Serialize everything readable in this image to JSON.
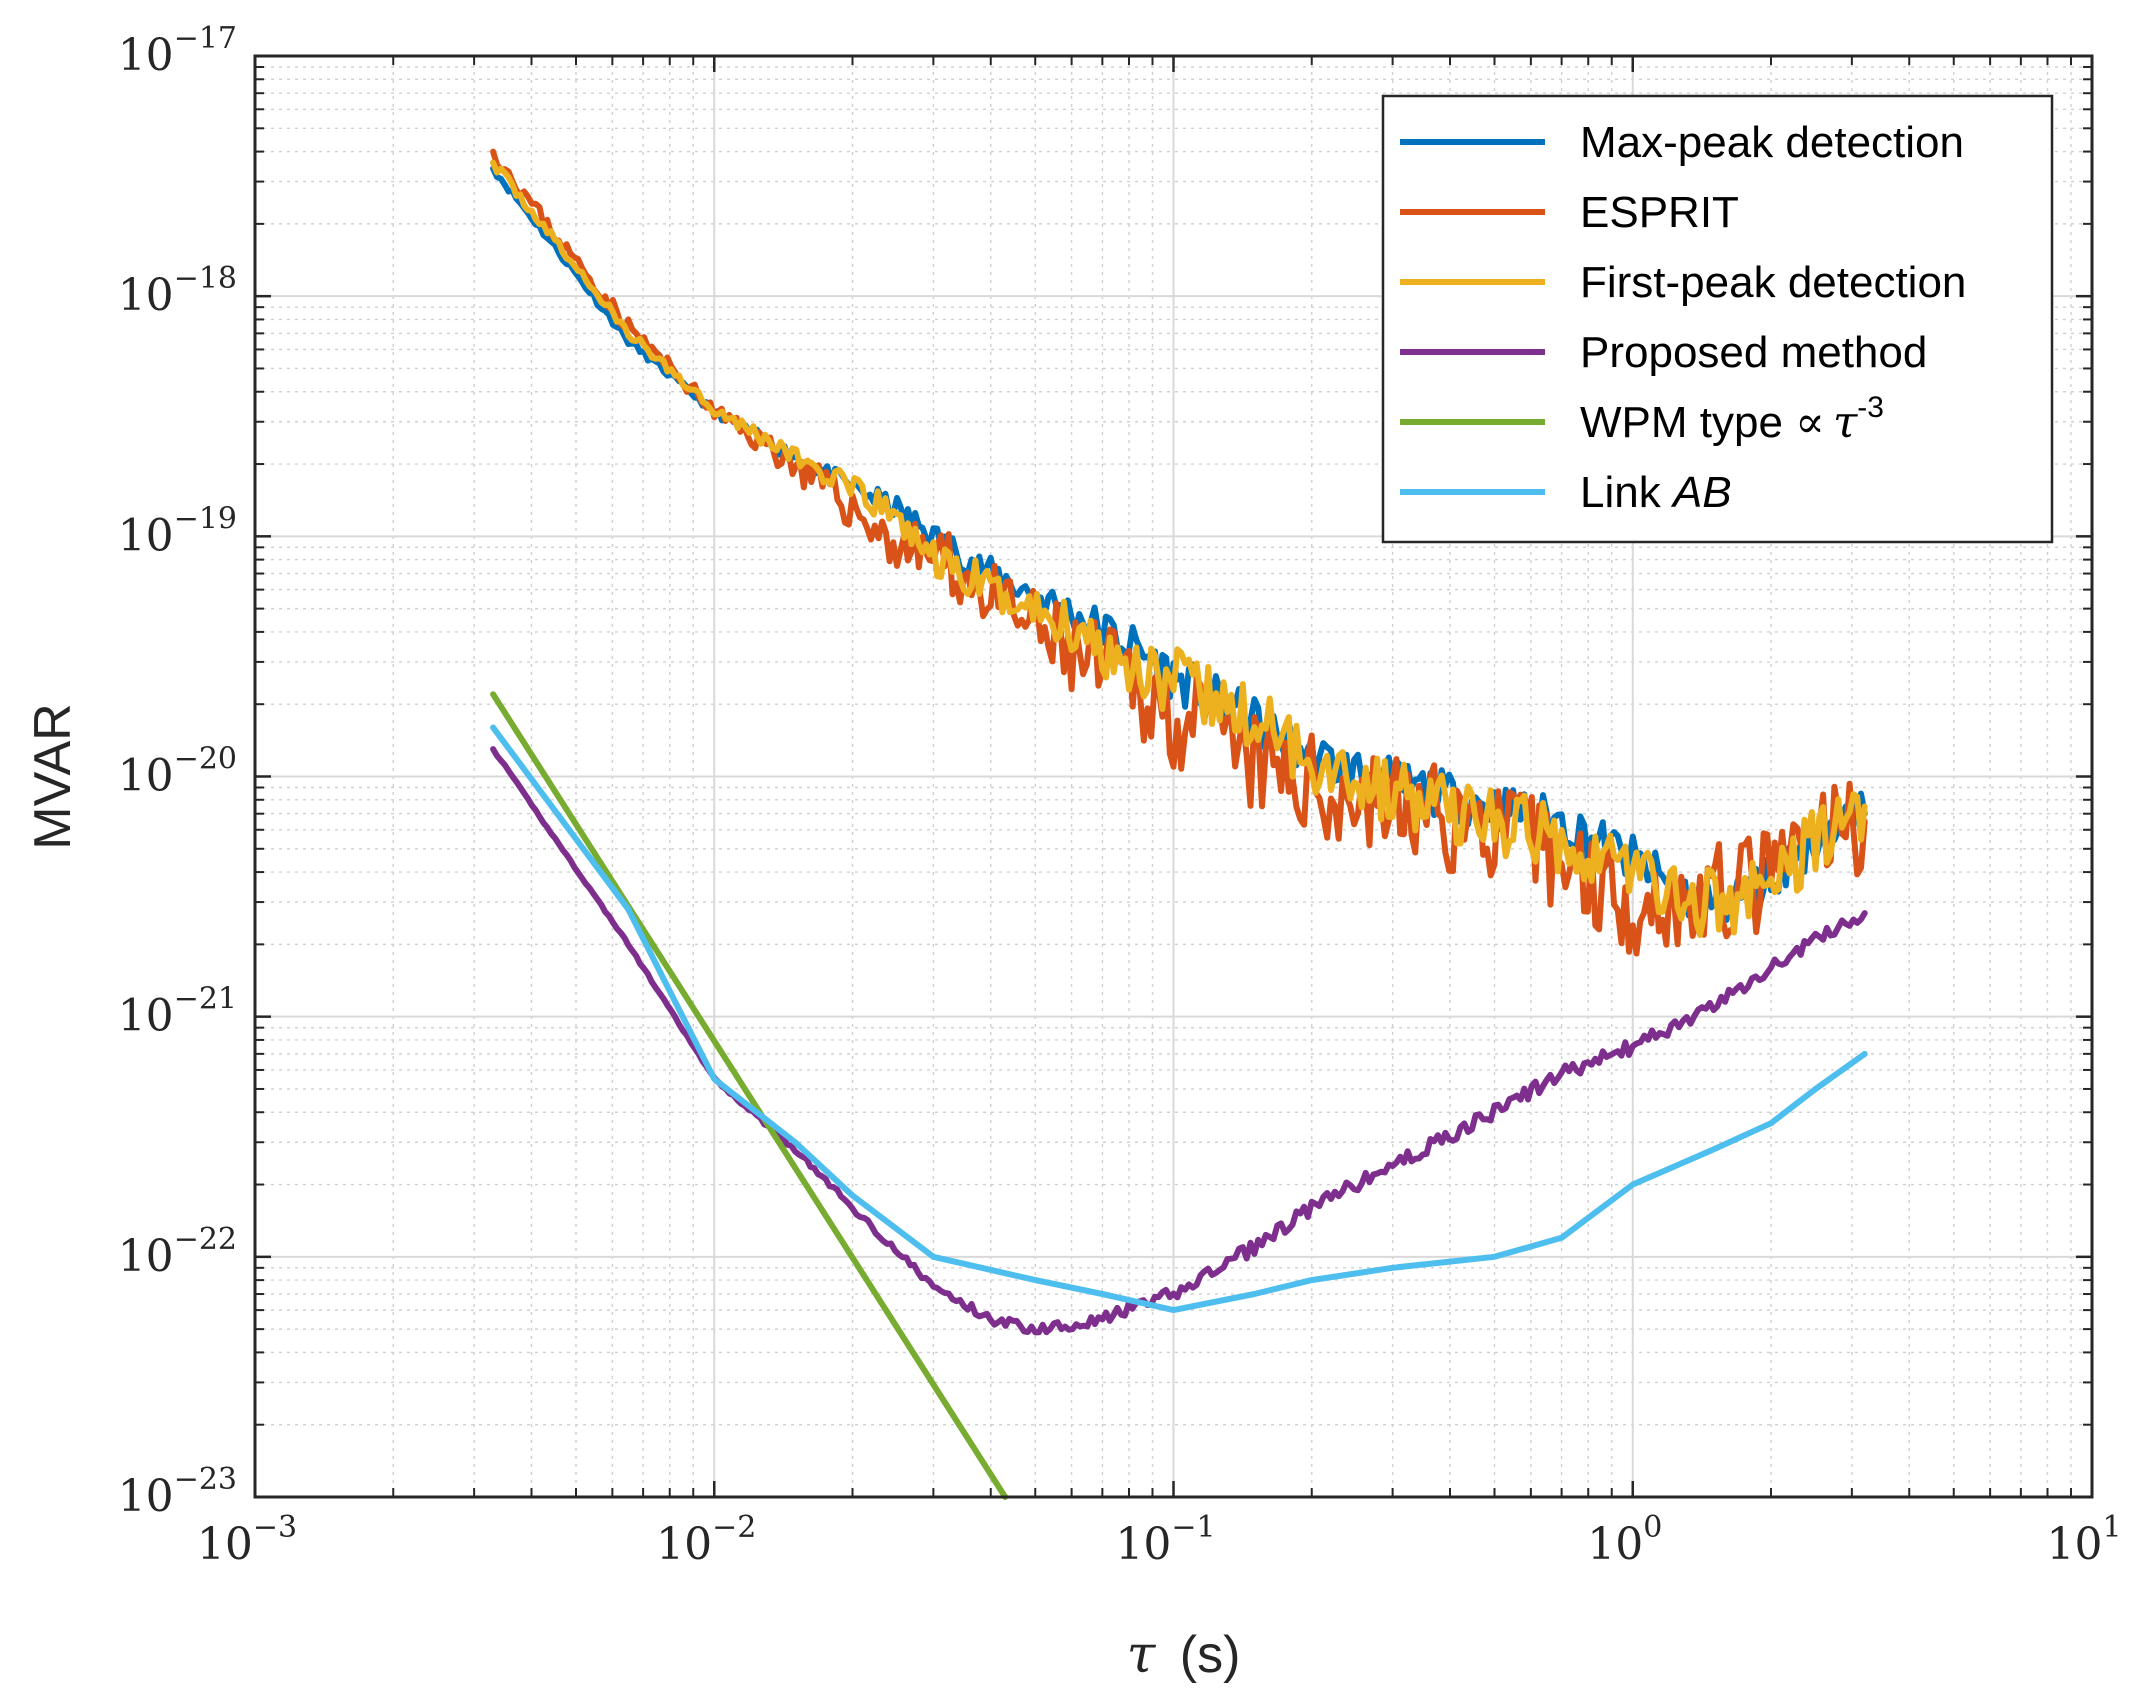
{
  "chart_data": {
    "type": "line",
    "title": "",
    "xlabel": "τ (s)",
    "xlabel_symbol": "τ",
    "xlabel_unit": "(s)",
    "ylabel": "MVAR",
    "xscale": "log",
    "yscale": "log",
    "xlim": [
      0.001,
      10
    ],
    "ylim": [
      1e-23,
      1e-17
    ],
    "grid": true,
    "legend_position": "top-right",
    "x_ticks": [
      {
        "base": "10",
        "exp": "−3",
        "value": 0.001
      },
      {
        "base": "10",
        "exp": "−2",
        "value": 0.01
      },
      {
        "base": "10",
        "exp": "−1",
        "value": 0.1
      },
      {
        "base": "10",
        "exp": "0",
        "value": 1
      },
      {
        "base": "10",
        "exp": "1",
        "value": 10
      }
    ],
    "y_ticks": [
      {
        "base": "10",
        "exp": "−23",
        "value": 1e-23
      },
      {
        "base": "10",
        "exp": "−22",
        "value": 1e-22
      },
      {
        "base": "10",
        "exp": "−21",
        "value": 1e-21
      },
      {
        "base": "10",
        "exp": "−20",
        "value": 1e-20
      },
      {
        "base": "10",
        "exp": "−19",
        "value": 1e-19
      },
      {
        "base": "10",
        "exp": "−18",
        "value": 1e-18
      },
      {
        "base": "10",
        "exp": "−17",
        "value": 1e-17
      }
    ],
    "series": [
      {
        "name": "Max-peak detection",
        "color": "#0072BD",
        "noise": 0.1,
        "seed": 11,
        "points": [
          [
            0.0033,
            3.4e-18
          ],
          [
            0.0045,
            1.6e-18
          ],
          [
            0.0065,
            6.5e-19
          ],
          [
            0.01,
            3.3e-19
          ],
          [
            0.016,
            2e-19
          ],
          [
            0.025,
            1.3e-19
          ],
          [
            0.03,
            1e-19
          ],
          [
            0.04,
            7e-20
          ],
          [
            0.06,
            4.8e-20
          ],
          [
            0.08,
            3.6e-20
          ],
          [
            0.1,
            2.6e-20
          ],
          [
            0.15,
            1.7e-20
          ],
          [
            0.2,
            1.2e-20
          ],
          [
            0.3,
            9.5e-21
          ],
          [
            0.5,
            7.5e-21
          ],
          [
            0.7,
            6.5e-21
          ],
          [
            1.0,
            4.5e-21
          ],
          [
            1.3,
            3.2e-21
          ],
          [
            1.6,
            3e-21
          ],
          [
            2.0,
            3.8e-21
          ],
          [
            2.5,
            5.5e-21
          ],
          [
            3.2,
            7e-21
          ]
        ]
      },
      {
        "name": "ESPRIT",
        "color": "#D95319",
        "noise": 0.22,
        "seed": 23,
        "points": [
          [
            0.0033,
            4e-18
          ],
          [
            0.0045,
            1.8e-18
          ],
          [
            0.0065,
            7.5e-19
          ],
          [
            0.01,
            3.3e-19
          ],
          [
            0.014,
            2.2e-19
          ],
          [
            0.02,
            1.3e-19
          ],
          [
            0.025,
            9e-20
          ],
          [
            0.03,
            8.5e-20
          ],
          [
            0.04,
            5.5e-20
          ],
          [
            0.06,
            3.2e-20
          ],
          [
            0.08,
            2.5e-20
          ],
          [
            0.1,
            1.8e-20
          ],
          [
            0.15,
            1.1e-20
          ],
          [
            0.2,
            9e-21
          ],
          [
            0.3,
            7.5e-21
          ],
          [
            0.5,
            6e-21
          ],
          [
            0.7,
            4.5e-21
          ],
          [
            1.0,
            3e-21
          ],
          [
            1.3,
            3e-21
          ],
          [
            1.6,
            3.2e-21
          ],
          [
            2.0,
            3.8e-21
          ],
          [
            2.5,
            5.5e-21
          ],
          [
            3.2,
            6.5e-21
          ]
        ]
      },
      {
        "name": "First-peak detection",
        "color": "#EDB120",
        "noise": 0.14,
        "seed": 37,
        "points": [
          [
            0.0033,
            3.6e-18
          ],
          [
            0.0045,
            1.7e-18
          ],
          [
            0.0065,
            7e-19
          ],
          [
            0.01,
            3.4e-19
          ],
          [
            0.016,
            2e-19
          ],
          [
            0.025,
            1.2e-19
          ],
          [
            0.03,
            8e-20
          ],
          [
            0.04,
            6e-20
          ],
          [
            0.06,
            4.2e-20
          ],
          [
            0.08,
            3e-20
          ],
          [
            0.1,
            2.5e-20
          ],
          [
            0.15,
            1.7e-20
          ],
          [
            0.2,
            1.2e-20
          ],
          [
            0.3,
            8.5e-21
          ],
          [
            0.5,
            6.5e-21
          ],
          [
            0.7,
            5.5e-21
          ],
          [
            1.0,
            4.2e-21
          ],
          [
            1.3,
            3e-21
          ],
          [
            1.6,
            3e-21
          ],
          [
            2.0,
            3.5e-21
          ],
          [
            2.5,
            5.5e-21
          ],
          [
            3.2,
            7.5e-21
          ]
        ]
      },
      {
        "name": "Proposed method",
        "color": "#7E2F8E",
        "noise": 0.03,
        "seed": 41,
        "points": [
          [
            0.0033,
            1.3e-20
          ],
          [
            0.0065,
            2e-21
          ],
          [
            0.01,
            5.5e-22
          ],
          [
            0.015,
            2.8e-22
          ],
          [
            0.02,
            1.6e-22
          ],
          [
            0.03,
            7.5e-23
          ],
          [
            0.04,
            5.5e-23
          ],
          [
            0.05,
            5e-23
          ],
          [
            0.07,
            5.5e-23
          ],
          [
            0.1,
            7e-23
          ],
          [
            0.15,
            1.1e-22
          ],
          [
            0.2,
            1.6e-22
          ],
          [
            0.3,
            2.4e-22
          ],
          [
            0.5,
            4e-22
          ],
          [
            0.7,
            5.8e-22
          ],
          [
            1.0,
            7.5e-22
          ],
          [
            1.5,
            1.1e-21
          ],
          [
            2.0,
            1.6e-21
          ],
          [
            2.5,
            2.1e-21
          ],
          [
            3.2,
            2.7e-21
          ]
        ]
      },
      {
        "name": "WPM type ∝ τ-3",
        "label_parts": {
          "prefix": "WPM type ",
          "symbol": "∝",
          "var": "τ",
          "exp": "-3"
        },
        "color": "#77AC30",
        "noise": 0,
        "seed": 0,
        "points": [
          [
            0.0033,
            2.2e-20
          ],
          [
            0.043,
            1e-23
          ]
        ]
      },
      {
        "name": "Link AB",
        "label_parts": {
          "prefix": "Link ",
          "italic": "AB"
        },
        "color": "#4DBEEE",
        "noise": 0,
        "seed": 0,
        "points": [
          [
            0.0033,
            1.6e-20
          ],
          [
            0.0065,
            2.8e-21
          ],
          [
            0.01,
            5.5e-22
          ],
          [
            0.015,
            3e-22
          ],
          [
            0.02,
            1.8e-22
          ],
          [
            0.03,
            1e-22
          ],
          [
            0.05,
            8e-23
          ],
          [
            0.07,
            7e-23
          ],
          [
            0.1,
            6e-23
          ],
          [
            0.15,
            7e-23
          ],
          [
            0.2,
            8e-23
          ],
          [
            0.3,
            9e-23
          ],
          [
            0.5,
            1e-22
          ],
          [
            0.7,
            1.2e-22
          ],
          [
            1.0,
            2e-22
          ],
          [
            1.5,
            2.8e-22
          ],
          [
            2.0,
            3.6e-22
          ],
          [
            2.5,
            5e-22
          ],
          [
            3.2,
            7e-22
          ]
        ]
      }
    ]
  }
}
